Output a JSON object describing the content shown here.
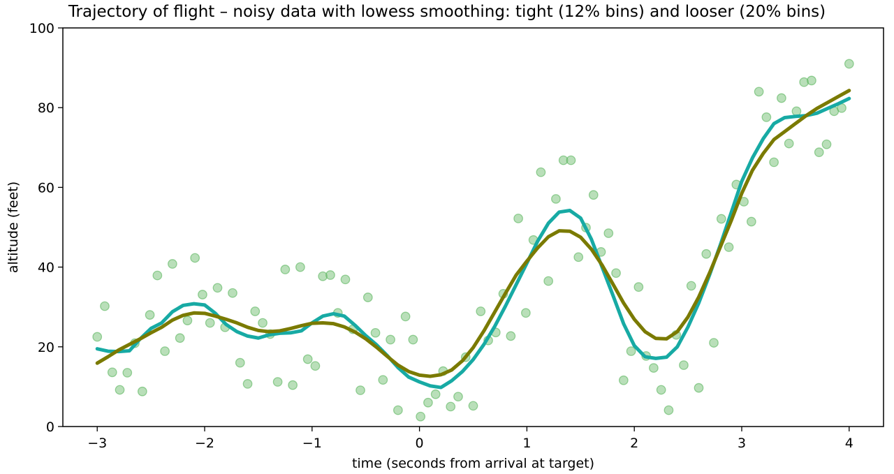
{
  "chart_data": {
    "type": "scatter",
    "title": "Trajectory of flight  –  noisy data with lowess smoothing: tight (12% bins) and looser (20% bins)",
    "xlabel": "time (seconds from arrival at target)",
    "ylabel": "altitude (feet)",
    "xlim": [
      -3.32,
      4.32
    ],
    "ylim": [
      0,
      100
    ],
    "xticks": [
      -3,
      -2,
      -1,
      0,
      1,
      2,
      3,
      4
    ],
    "xtick_labels": [
      "−3",
      "−2",
      "−1",
      "0",
      "1",
      "2",
      "3",
      "4"
    ],
    "yticks": [
      0,
      20,
      40,
      60,
      80,
      100
    ],
    "ytick_labels": [
      "0",
      "20",
      "40",
      "60",
      "80",
      "100"
    ],
    "grid": false,
    "legend": "none",
    "colors": {
      "points": "#7fc47f",
      "points_edge": "#4caf50",
      "tight_smooth": "#17aaa4",
      "loose_smooth": "#7a7a00"
    },
    "series": [
      {
        "kind": "scatter",
        "x": [
          -3.0,
          -2.93,
          -2.86,
          -2.79,
          -2.72,
          -2.65,
          -2.58,
          -2.51,
          -2.44,
          -2.37,
          -2.3,
          -2.23,
          -2.16,
          -2.09,
          -2.02,
          -1.95,
          -1.88,
          -1.81,
          -1.74,
          -1.67,
          -1.6,
          -1.53,
          -1.46,
          -1.39,
          -1.32,
          -1.25,
          -1.18,
          -1.11,
          -1.04,
          -0.97,
          -0.9,
          -0.83,
          -0.76,
          -0.69,
          -0.62,
          -0.55,
          -0.48,
          -0.41,
          -0.34,
          -0.27,
          -0.2,
          -0.13,
          -0.06,
          0.01,
          0.08,
          0.15,
          0.22,
          0.29,
          0.36,
          0.43,
          0.5,
          0.57,
          0.64,
          0.71,
          0.78,
          0.85,
          0.92,
          0.99,
          1.06,
          1.13,
          1.2,
          1.27,
          1.34,
          1.41,
          1.48,
          1.55,
          1.62,
          1.69,
          1.76,
          1.83,
          1.9,
          1.97,
          2.04,
          2.11,
          2.18,
          2.25,
          2.32,
          2.39,
          2.46,
          2.53,
          2.6,
          2.67,
          2.74,
          2.81,
          2.88,
          2.95,
          3.02,
          3.09,
          3.16,
          3.23,
          3.3,
          3.37,
          3.44,
          3.51,
          3.58,
          3.65,
          3.72,
          3.79,
          3.86,
          3.93,
          4.0
        ],
        "y": [
          22.5,
          30.2,
          13.6,
          9.2,
          13.5,
          20.9,
          8.8,
          28.0,
          37.9,
          18.9,
          40.8,
          22.2,
          26.6,
          42.3,
          33.1,
          26.0,
          34.8,
          24.9,
          33.5,
          16.0,
          10.7,
          28.9,
          26.0,
          23.2,
          11.2,
          39.4,
          10.4,
          40.0,
          16.9,
          15.2,
          37.7,
          38.0,
          28.5,
          36.9,
          24.4,
          9.1,
          32.4,
          23.5,
          11.7,
          21.8,
          4.1,
          27.6,
          21.8,
          2.5,
          6.0,
          8.1,
          13.9,
          5.0,
          7.5,
          17.4,
          5.2,
          28.9,
          21.6,
          23.6,
          33.3,
          22.7,
          52.2,
          28.5,
          46.8,
          63.8,
          36.5,
          57.1,
          66.8,
          66.8,
          42.5,
          49.9,
          58.1,
          43.8,
          48.5,
          38.5,
          11.6,
          18.9,
          35.0,
          17.7,
          14.7,
          9.2,
          4.1,
          23.0,
          15.4,
          35.3,
          9.7,
          43.3,
          21.0,
          52.1,
          45.0,
          60.7,
          56.4,
          51.4,
          84.0,
          77.6,
          66.3,
          82.4,
          71.0,
          79.1,
          86.4,
          86.8,
          68.8,
          70.8,
          79.1,
          79.9,
          91.0
        ]
      },
      {
        "kind": "line",
        "x": [
          -3.0,
          -2.9,
          -2.8,
          -2.7,
          -2.6,
          -2.5,
          -2.4,
          -2.3,
          -2.2,
          -2.1,
          -2.0,
          -1.9,
          -1.8,
          -1.7,
          -1.6,
          -1.5,
          -1.4,
          -1.3,
          -1.2,
          -1.1,
          -1.0,
          -0.9,
          -0.8,
          -0.7,
          -0.6,
          -0.5,
          -0.4,
          -0.3,
          -0.2,
          -0.1,
          0.0,
          0.1,
          0.2,
          0.3,
          0.4,
          0.5,
          0.6,
          0.7,
          0.8,
          0.9,
          1.0,
          1.1,
          1.2,
          1.3,
          1.4,
          1.5,
          1.6,
          1.7,
          1.8,
          1.9,
          2.0,
          2.1,
          2.2,
          2.3,
          2.4,
          2.5,
          2.6,
          2.7,
          2.8,
          2.9,
          3.0,
          3.1,
          3.2,
          3.3,
          3.4,
          3.5,
          3.6,
          3.7,
          3.8,
          3.9,
          4.0
        ],
        "y": [
          19.5,
          18.9,
          18.8,
          19.0,
          22.0,
          24.6,
          26.0,
          28.8,
          30.4,
          30.8,
          30.5,
          28.4,
          25.6,
          23.8,
          22.7,
          22.2,
          23.0,
          23.4,
          23.5,
          24.0,
          26.0,
          27.7,
          28.3,
          27.7,
          25.4,
          22.8,
          20.5,
          17.8,
          14.8,
          12.4,
          11.2,
          10.2,
          9.8,
          11.5,
          13.8,
          16.8,
          20.6,
          25.1,
          30.2,
          35.6,
          41.0,
          46.5,
          51.0,
          53.8,
          54.2,
          52.3,
          47.0,
          40.0,
          33.0,
          25.8,
          20.3,
          17.5,
          17.1,
          17.4,
          20.0,
          25.0,
          31.0,
          38.0,
          45.5,
          53.5,
          61.5,
          67.4,
          72.2,
          76.0,
          77.5,
          77.8,
          78.0,
          78.6,
          79.8,
          81.0,
          82.3
        ]
      },
      {
        "kind": "line",
        "x": [
          -3.0,
          -2.9,
          -2.8,
          -2.7,
          -2.6,
          -2.5,
          -2.4,
          -2.3,
          -2.2,
          -2.1,
          -2.0,
          -1.9,
          -1.8,
          -1.7,
          -1.6,
          -1.5,
          -1.4,
          -1.3,
          -1.2,
          -1.1,
          -1.0,
          -0.9,
          -0.8,
          -0.7,
          -0.6,
          -0.5,
          -0.4,
          -0.3,
          -0.2,
          -0.1,
          0.0,
          0.1,
          0.2,
          0.3,
          0.4,
          0.5,
          0.6,
          0.7,
          0.8,
          0.9,
          1.0,
          1.1,
          1.2,
          1.3,
          1.4,
          1.5,
          1.6,
          1.7,
          1.8,
          1.9,
          2.0,
          2.1,
          2.2,
          2.3,
          2.4,
          2.5,
          2.6,
          2.7,
          2.8,
          2.9,
          3.0,
          3.1,
          3.2,
          3.3,
          3.4,
          3.5,
          3.6,
          3.7,
          3.8,
          3.9,
          4.0
        ],
        "y": [
          15.9,
          17.5,
          19.2,
          20.6,
          22.0,
          23.5,
          24.9,
          26.7,
          27.9,
          28.5,
          28.4,
          27.7,
          26.9,
          26.0,
          24.9,
          24.1,
          23.8,
          24.0,
          24.6,
          25.3,
          25.9,
          26.0,
          25.8,
          25.0,
          23.7,
          22.0,
          19.9,
          17.6,
          15.4,
          13.8,
          12.9,
          12.6,
          13.0,
          14.2,
          16.5,
          19.8,
          24.0,
          28.7,
          33.4,
          38.0,
          41.5,
          44.8,
          47.6,
          49.1,
          49.0,
          47.5,
          44.5,
          40.5,
          35.8,
          31.0,
          26.9,
          23.8,
          22.1,
          22.0,
          23.8,
          27.5,
          32.5,
          38.5,
          45.0,
          51.5,
          58.5,
          64.3,
          68.5,
          72.0,
          74.0,
          76.0,
          78.0,
          79.8,
          81.3,
          82.8,
          84.3
        ]
      }
    ]
  }
}
